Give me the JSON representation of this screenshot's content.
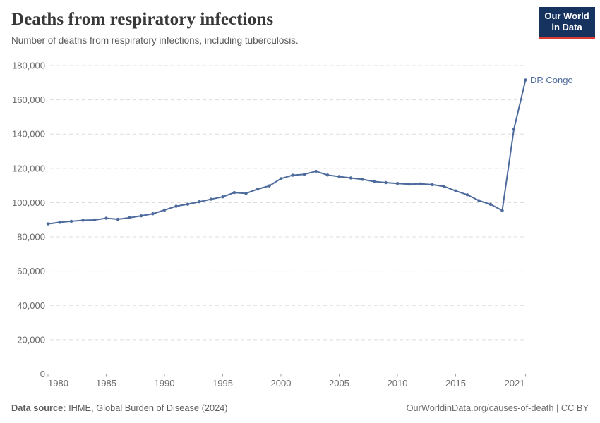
{
  "header": {
    "title": "Deaths from respiratory infections",
    "subtitle": "Number of deaths from respiratory infections, including tuberculosis.",
    "logo": {
      "line1": "Our World",
      "line2": "in Data",
      "bg_color": "#163360",
      "accent_color": "#dc3c31"
    }
  },
  "chart_data": {
    "type": "line",
    "title": "Deaths from respiratory infections",
    "xlabel": "",
    "ylabel": "",
    "xlim": [
      1980,
      2021
    ],
    "ylim": [
      0,
      180000
    ],
    "x_ticks": [
      1980,
      1985,
      1990,
      1995,
      2000,
      2005,
      2010,
      2015,
      2021
    ],
    "y_ticks": [
      0,
      20000,
      40000,
      60000,
      80000,
      100000,
      120000,
      140000,
      160000,
      180000
    ],
    "grid": "horizontal-dashed",
    "legend_position": "end-of-line-label",
    "colors": {
      "line": "#4C6A9C",
      "grid": "#dddddd",
      "axis": "#a3a3a3",
      "tick_label": "#6b6b6b"
    },
    "series": [
      {
        "name": "DR Congo",
        "color": "#4C6A9C",
        "x": [
          1980,
          1981,
          1982,
          1983,
          1984,
          1985,
          1986,
          1987,
          1988,
          1989,
          1990,
          1991,
          1992,
          1993,
          1994,
          1995,
          1996,
          1997,
          1998,
          1999,
          2000,
          2001,
          2002,
          2003,
          2004,
          2005,
          2006,
          2007,
          2008,
          2009,
          2010,
          2011,
          2012,
          2013,
          2014,
          2015,
          2016,
          2017,
          2018,
          2019,
          2020,
          2021
        ],
        "values": [
          87600,
          88500,
          89100,
          89700,
          89900,
          90900,
          90300,
          91200,
          92300,
          93500,
          95700,
          97900,
          99100,
          100500,
          102000,
          103400,
          105900,
          105400,
          107900,
          109800,
          114000,
          116000,
          116500,
          118300,
          116100,
          115200,
          114400,
          113600,
          112300,
          111700,
          111200,
          110800,
          111000,
          110500,
          109500,
          106900,
          104600,
          101200,
          99000,
          95400,
          142800,
          171600
        ]
      }
    ]
  },
  "footer": {
    "source_label": "Data source:",
    "source_text": " IHME, Global Burden of Disease (2024)",
    "credit": "OurWorldinData.org/causes-of-death | CC BY"
  }
}
